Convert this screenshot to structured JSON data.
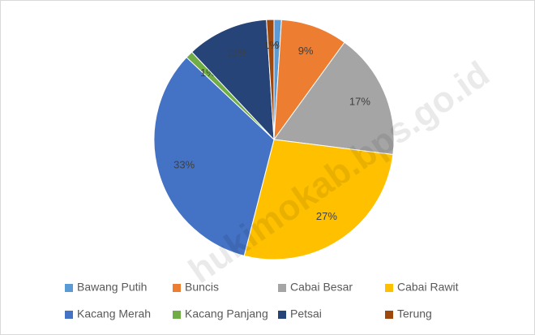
{
  "chart_data": {
    "type": "pie",
    "categories": [
      "Bawang Putih",
      "Buncis",
      "Cabai Besar",
      "Cabai Rawit",
      "Kacang Merah",
      "Kacang Panjang",
      "Petsai",
      "Terung"
    ],
    "values": [
      1,
      9,
      17,
      27,
      33,
      1,
      11,
      1
    ],
    "value_labels": [
      "1%",
      "9%",
      "17%",
      "27%",
      "33%",
      "1%",
      "11%",
      "1%"
    ],
    "colors": [
      "#5b9bd5",
      "#ed7d31",
      "#a5a5a5",
      "#ffc000",
      "#4472c4",
      "#70ad47",
      "#264478",
      "#9e480e"
    ],
    "legend": "bottom",
    "watermark": "hukimokab.bps.go.id"
  }
}
